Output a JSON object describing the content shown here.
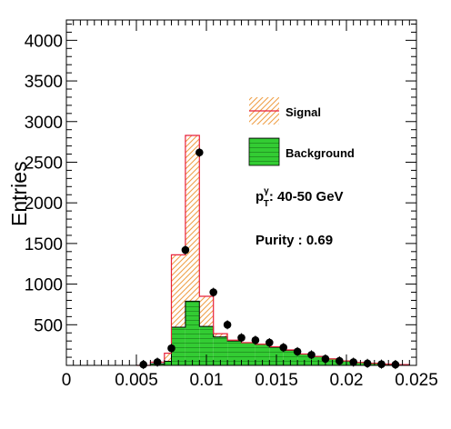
{
  "chart_data": {
    "type": "histogram",
    "title": "",
    "xlabel": "",
    "ylabel": "Entries",
    "xlim": [
      0,
      0.025
    ],
    "ylim": [
      0,
      4250
    ],
    "x_tick_labels": [
      "0",
      "0.005",
      "0.01",
      "0.015",
      "0.02",
      "0.025"
    ],
    "x_tick_values": [
      0,
      0.005,
      0.01,
      0.015,
      0.02,
      0.025
    ],
    "y_tick_labels": [
      "500",
      "1000",
      "1500",
      "2000",
      "2500",
      "3000",
      "3500",
      "4000"
    ],
    "y_tick_values": [
      500,
      1000,
      1500,
      2000,
      2500,
      3000,
      3500,
      4000
    ],
    "bin_edges": [
      0.005,
      0.006,
      0.007,
      0.0075,
      0.0085,
      0.0095,
      0.0105,
      0.0115,
      0.0125,
      0.0135,
      0.0145,
      0.0155,
      0.0165,
      0.0175,
      0.0185,
      0.0195,
      0.0205,
      0.0215,
      0.0225,
      0.0235,
      0.0245
    ],
    "series": [
      {
        "name": "Signal",
        "style": "stacked-total-hatched",
        "color": "#e8223c",
        "hatch_color": "#f0a048",
        "values": [
          0,
          40,
          150,
          1360,
          2830,
          850,
          390,
          310,
          280,
          260,
          230,
          190,
          140,
          110,
          80,
          55,
          35,
          25,
          15,
          8
        ]
      },
      {
        "name": "Background",
        "style": "filled",
        "color": "#33cc33",
        "values": [
          0,
          20,
          50,
          470,
          790,
          480,
          350,
          300,
          280,
          260,
          225,
          185,
          140,
          110,
          80,
          55,
          35,
          25,
          15,
          8
        ]
      },
      {
        "name": "Data",
        "style": "points",
        "color": "#000000",
        "x": [
          0.0055,
          0.0065,
          0.0075,
          0.0085,
          0.0095,
          0.0105,
          0.0115,
          0.0125,
          0.0135,
          0.0145,
          0.0155,
          0.0165,
          0.0175,
          0.0185,
          0.0195,
          0.0205,
          0.0215,
          0.0225,
          0.0235
        ],
        "y": [
          10,
          40,
          210,
          1420,
          2620,
          900,
          500,
          340,
          310,
          280,
          220,
          170,
          130,
          80,
          55,
          40,
          25,
          15,
          10
        ]
      }
    ],
    "legend": {
      "placement": "top-right",
      "entries": [
        {
          "label": "Signal",
          "key": "signal"
        },
        {
          "label": "Background",
          "key": "background"
        }
      ]
    },
    "annotations": {
      "pt_main": "p",
      "pt_sup": "γ",
      "pt_sub": "T",
      "pt_rest": ": 40-50 GeV",
      "purity": "Purity : 0.69"
    }
  }
}
